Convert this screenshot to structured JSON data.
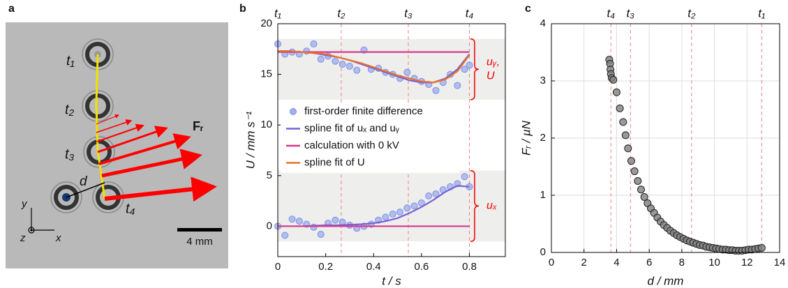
{
  "panel_a": {
    "label": "a",
    "times": [
      "t₁",
      "t₂",
      "t₃",
      "t₄"
    ],
    "force": "Fᵣ",
    "distance": "d",
    "axes": [
      "y",
      "z",
      "x"
    ],
    "scale_bar": "4 mm"
  },
  "chart_data": [
    {
      "type": "line",
      "panel_label": "b",
      "x_label": "t / s",
      "y_label": "U / mm s⁻¹",
      "xlim": [
        0,
        0.95
      ],
      "ylim": [
        -3,
        20
      ],
      "xticks": [
        0,
        0.2,
        0.4,
        0.6,
        0.8
      ],
      "yticks": [
        0,
        5,
        10,
        15,
        20
      ],
      "grid": false,
      "markers": {
        "x": [
          0,
          0.265,
          0.545,
          0.8
        ],
        "labels": [
          "t₁",
          "t₂",
          "t₃",
          "t₄"
        ],
        "color": "#f08080"
      },
      "braces": [
        {
          "range": [
            12.5,
            18.5
          ],
          "lines": [
            "uᵧ,",
            "U"
          ]
        },
        {
          "range": [
            -1.5,
            5.5
          ],
          "lines": [
            "uₓ"
          ]
        }
      ],
      "series": [
        {
          "name": "first-order finite difference",
          "style": "markers",
          "color": "#9fb0f0",
          "x": [
            0,
            0.03,
            0.06,
            0.09,
            0.12,
            0.15,
            0.18,
            0.21,
            0.24,
            0.27,
            0.3,
            0.33,
            0.36,
            0.39,
            0.42,
            0.45,
            0.48,
            0.51,
            0.54,
            0.57,
            0.6,
            0.63,
            0.66,
            0.69,
            0.72,
            0.75,
            0.78,
            0.8,
            0,
            0.03,
            0.06,
            0.09,
            0.12,
            0.15,
            0.18,
            0.21,
            0.24,
            0.27,
            0.3,
            0.33,
            0.36,
            0.39,
            0.42,
            0.45,
            0.48,
            0.51,
            0.54,
            0.57,
            0.6,
            0.63,
            0.66,
            0.69,
            0.72,
            0.75,
            0.78,
            0.8
          ],
          "values": [
            18.0,
            17.0,
            17.2,
            17.0,
            17.3,
            18.0,
            16.5,
            16.8,
            16.3,
            16.0,
            15.8,
            15.4,
            17.4,
            15.5,
            15.6,
            15.2,
            15.0,
            14.6,
            15.2,
            14.6,
            14.3,
            14.0,
            13.4,
            14.2,
            15.0,
            13.9,
            15.5,
            15.9,
            0.0,
            -0.9,
            0.7,
            0.5,
            0.2,
            -0.1,
            -0.8,
            0.3,
            0.6,
            0.4,
            0.1,
            -0.2,
            0.0,
            0.2,
            0.6,
            0.9,
            1.2,
            1.4,
            1.8,
            2.0,
            2.3,
            3.0,
            3.2,
            3.6,
            3.9,
            4.2,
            4.9,
            3.9
          ]
        },
        {
          "name": "spline fit of uₓ and uᵧ",
          "style": "line",
          "color": "#7a5fd6",
          "x": [
            0,
            0.05,
            0.1,
            0.15,
            0.2,
            0.25,
            0.3,
            0.35,
            0.4,
            0.45,
            0.5,
            0.55,
            0.6,
            0.65,
            0.7,
            0.75,
            0.8,
            null,
            0,
            0.05,
            0.1,
            0.15,
            0.2,
            0.25,
            0.3,
            0.35,
            0.4,
            0.45,
            0.5,
            0.55,
            0.6,
            0.65,
            0.7,
            0.75,
            0.8
          ],
          "values": [
            17.3,
            17.3,
            17.2,
            17.1,
            16.9,
            16.7,
            16.4,
            16.0,
            15.6,
            15.2,
            14.8,
            14.4,
            14.2,
            14.2,
            14.6,
            15.5,
            17.0,
            null,
            0,
            0,
            0,
            0.05,
            0.1,
            0.1,
            0.15,
            0.2,
            0.3,
            0.5,
            0.8,
            1.3,
            1.9,
            2.6,
            3.4,
            4.0,
            3.9
          ]
        },
        {
          "name": "calculation with 0 kV",
          "style": "line",
          "color": "#d63a8a",
          "x": [
            0,
            0.8,
            null,
            0,
            0.8
          ],
          "values": [
            17.2,
            17.2,
            null,
            0,
            0
          ]
        },
        {
          "name": "spline fit of U",
          "style": "line",
          "color": "#e8712b",
          "x": [
            0,
            0.05,
            0.1,
            0.15,
            0.2,
            0.25,
            0.3,
            0.35,
            0.4,
            0.45,
            0.5,
            0.55,
            0.6,
            0.65,
            0.7,
            0.75,
            0.8
          ],
          "values": [
            17.3,
            17.3,
            17.2,
            17.1,
            17.0,
            16.7,
            16.4,
            16.1,
            15.7,
            15.3,
            14.9,
            14.6,
            14.3,
            14.2,
            14.5,
            15.3,
            16.9
          ]
        }
      ]
    },
    {
      "type": "scatter",
      "panel_label": "c",
      "x_label": "d / mm",
      "y_label": "Fᵣ / µN",
      "xlim": [
        0,
        14
      ],
      "ylim": [
        0,
        4
      ],
      "xticks": [
        0,
        2,
        4,
        6,
        8,
        10,
        12,
        14
      ],
      "yticks": [
        0,
        1,
        2,
        3,
        4
      ],
      "grid": true,
      "markers": {
        "x": [
          12.9,
          8.6,
          4.85,
          3.65
        ],
        "labels": [
          "t₁",
          "t₂",
          "t₃",
          "t₄"
        ],
        "color": "#f08080"
      },
      "color": "#808080",
      "x": [
        3.55,
        3.6,
        3.62,
        3.65,
        3.7,
        3.8,
        4.0,
        4.2,
        4.4,
        4.55,
        4.7,
        4.9,
        5.1,
        5.3,
        5.5,
        5.7,
        5.9,
        6.1,
        6.3,
        6.5,
        6.7,
        6.9,
        7.1,
        7.3,
        7.5,
        7.7,
        7.9,
        8.1,
        8.3,
        8.5,
        8.7,
        8.9,
        9.1,
        9.3,
        9.5,
        9.7,
        9.9,
        10.1,
        10.3,
        10.5,
        10.7,
        10.9,
        11.1,
        11.3,
        11.5,
        11.7,
        11.9,
        12.1,
        12.3,
        12.5,
        12.7,
        12.9
      ],
      "values": [
        3.37,
        3.3,
        3.2,
        3.12,
        3.05,
        3.02,
        2.8,
        2.52,
        2.28,
        2.05,
        1.82,
        1.6,
        1.42,
        1.25,
        1.1,
        0.97,
        0.86,
        0.77,
        0.69,
        0.61,
        0.54,
        0.48,
        0.43,
        0.38,
        0.34,
        0.3,
        0.27,
        0.24,
        0.21,
        0.19,
        0.17,
        0.15,
        0.13,
        0.12,
        0.1,
        0.09,
        0.08,
        0.07,
        0.06,
        0.05,
        0.05,
        0.04,
        0.04,
        0.03,
        0.03,
        0.03,
        0.04,
        0.05,
        0.05,
        0.06,
        0.07,
        0.08
      ]
    }
  ]
}
